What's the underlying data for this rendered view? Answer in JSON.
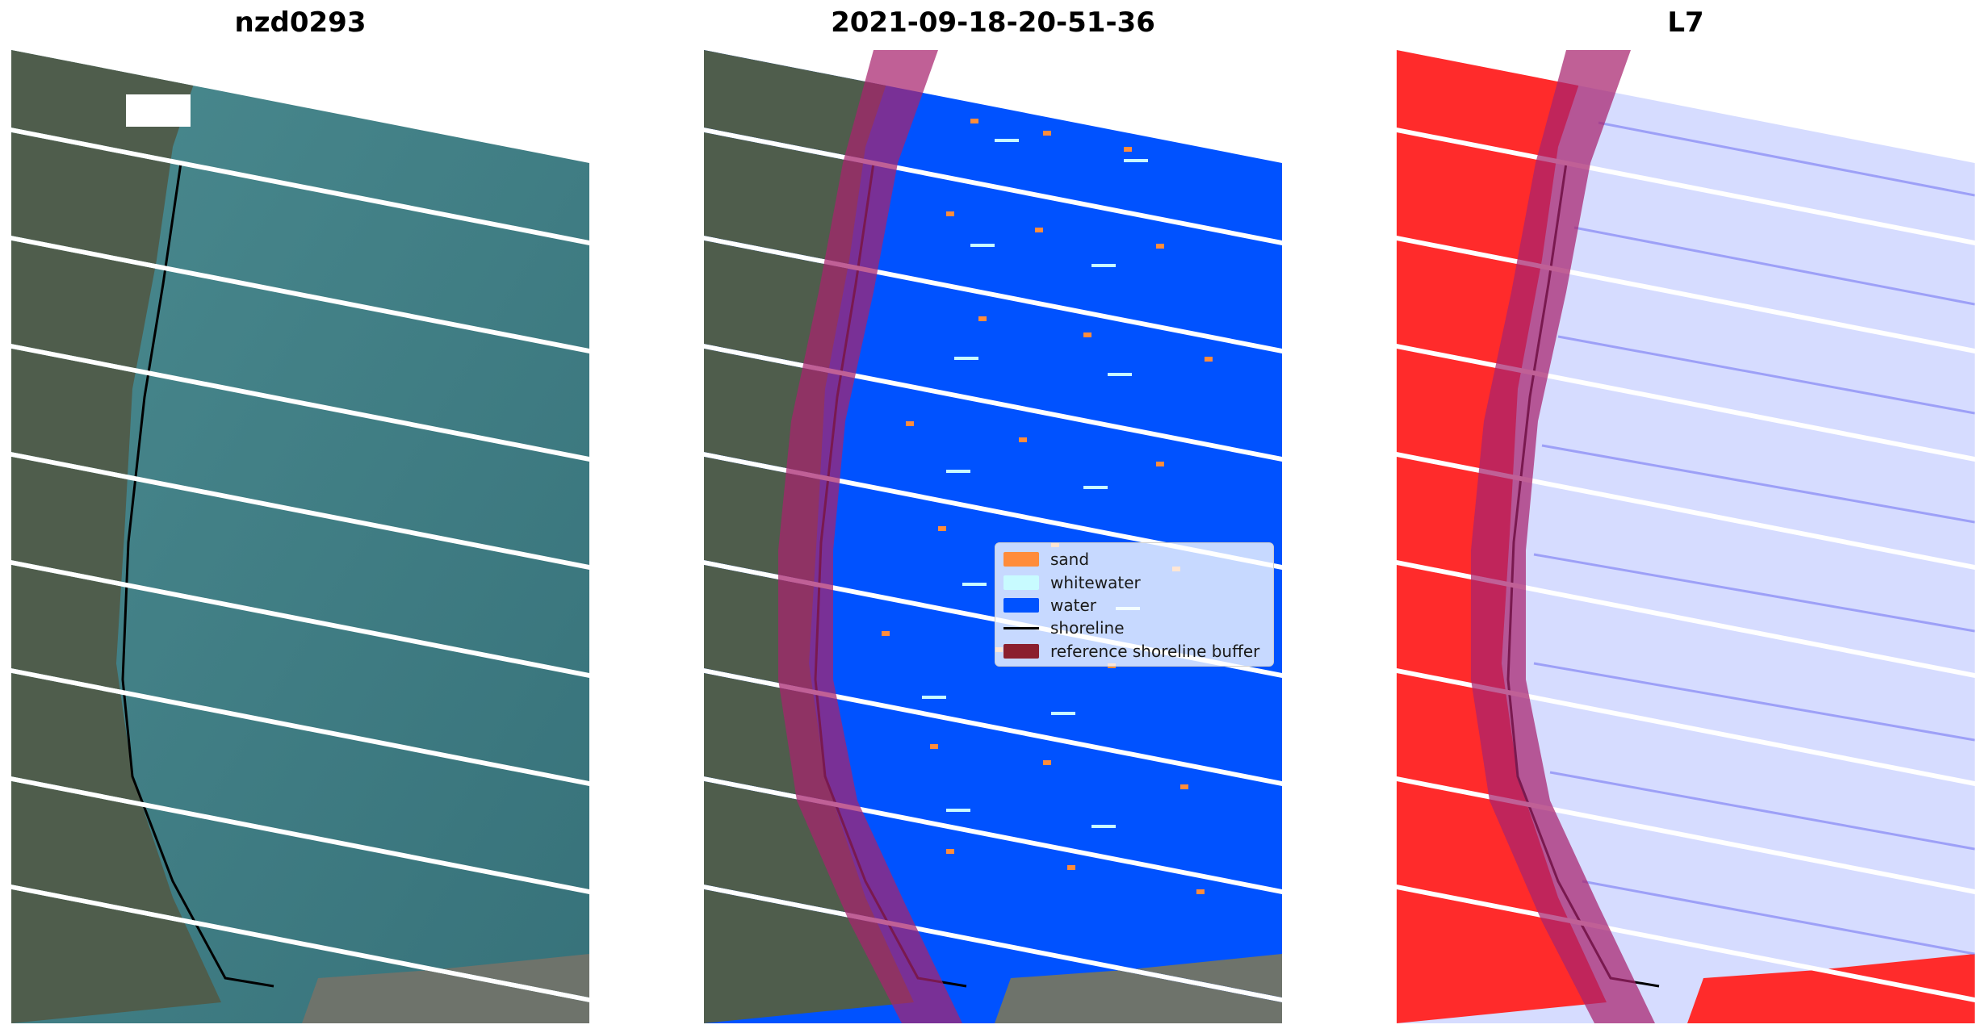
{
  "titles": {
    "left": "nzd0293",
    "center": "2021-09-18-20-51-36",
    "right": "L7"
  },
  "legend": {
    "sand": "sand",
    "whitewater": "whitewater",
    "water": "water",
    "shoreline": "shoreline",
    "buffer": "reference shoreline buffer"
  },
  "colors": {
    "sand": "#ff8c3b",
    "whitewater": "#c8fbff",
    "water": "#0052ff",
    "shoreline": "#000000",
    "buffer": "#8b1f2e",
    "buffer_overlay": "#a8226e",
    "ocean_rgb": "#3e7f86",
    "land_rgb": "#4f5d4c",
    "land_index": "#ff2b2b",
    "ocean_index": "#d6dcff"
  }
}
